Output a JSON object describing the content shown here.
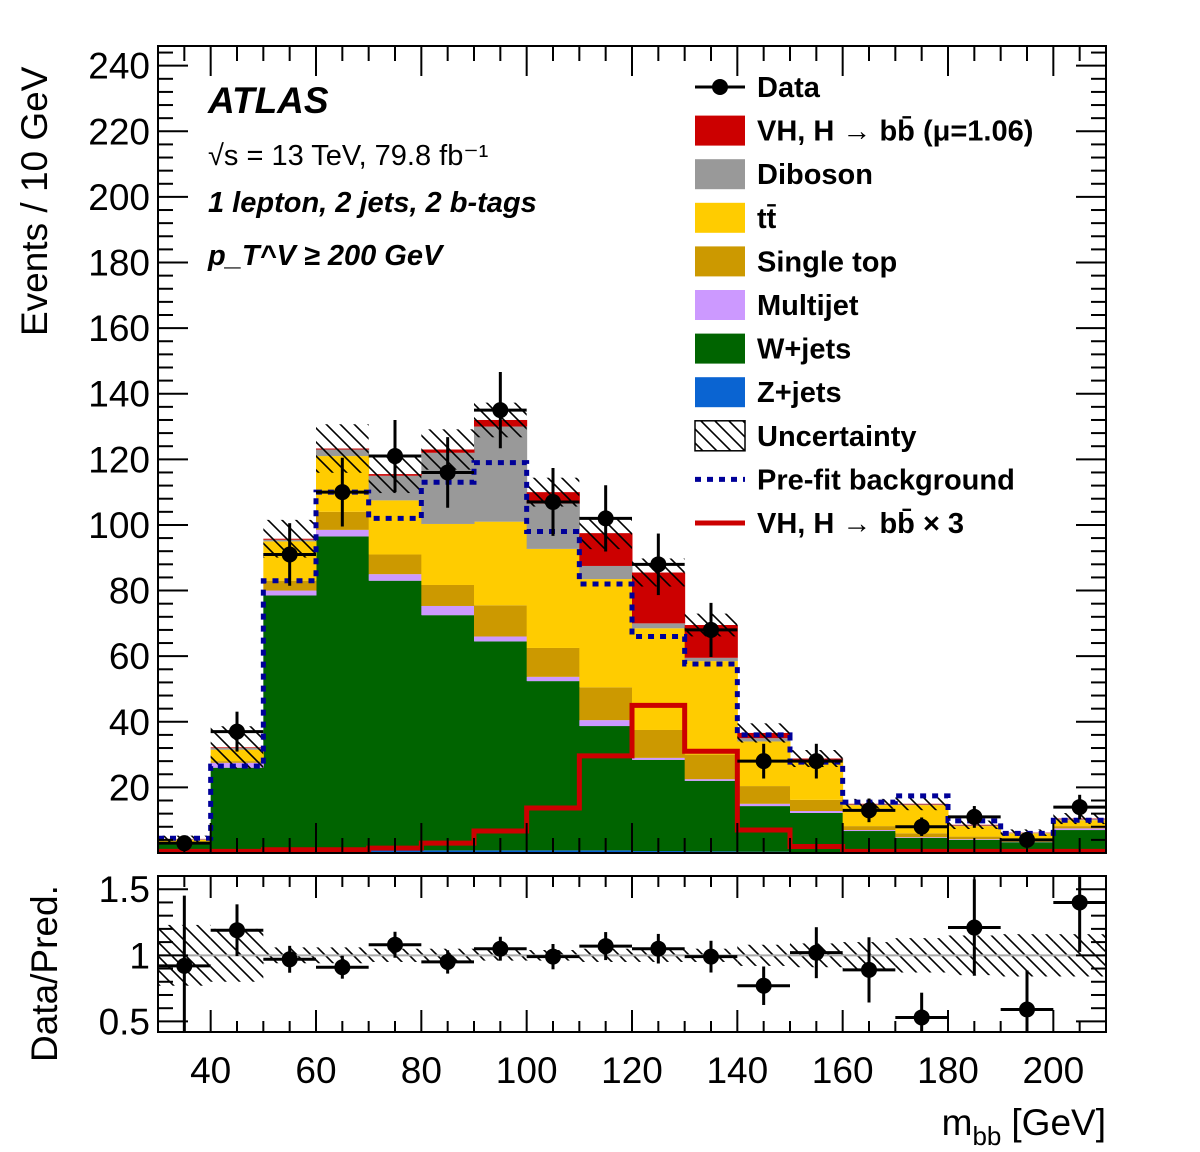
{
  "chart_data": {
    "type": "bar",
    "subtype": "stacked-histogram-with-ratio",
    "title": "",
    "experiment": "ATLAS",
    "annotations": [
      "√s = 13 TeV, 79.8 fb⁻¹",
      "1 lepton, 2 jets, 2 b-tags",
      "p_T^V ≥ 200 GeV"
    ],
    "annotation_parts": {
      "sqrt_s": "√s = 13 TeV, 79.8 fb",
      "lumi_exp": "-1",
      "selection": "1 lepton, 2 jets, 2 b-tags",
      "pt_p": "p",
      "pt_sup": "V",
      "pt_sub": "T",
      "pt_rest": "≥ 200 GeV"
    },
    "xlabel": "m_bb [GeV]",
    "xlabel_parts": {
      "m": "m",
      "sub": "bb",
      "unit": "[GeV]"
    },
    "ylabel": "Events / 10 GeV",
    "ratio_ylabel": "Data/Pred.",
    "xlim": [
      30,
      210
    ],
    "ylim": [
      0,
      246
    ],
    "ratio_ylim": [
      0.42,
      1.6
    ],
    "x_ticks": [
      40,
      60,
      80,
      100,
      120,
      140,
      160,
      180,
      200
    ],
    "y_ticks": [
      20,
      40,
      60,
      80,
      100,
      120,
      140,
      160,
      180,
      200,
      220,
      240
    ],
    "ratio_ticks": [
      "0.5",
      "1",
      "1.5"
    ],
    "bin_edges": [
      30,
      40,
      50,
      60,
      70,
      80,
      90,
      100,
      110,
      120,
      130,
      140,
      150,
      160,
      170,
      180,
      190,
      200,
      210
    ],
    "legend_position": "top-right",
    "series": [
      {
        "name": "Z+jets",
        "color": "#0a64d2",
        "values": [
          0.3,
          0.5,
          0.8,
          0.8,
          0.8,
          0.8,
          0.8,
          0.8,
          0.8,
          0.6,
          0.5,
          0.4,
          0.3,
          0.3,
          0.2,
          0.2,
          0.1,
          0.3
        ]
      },
      {
        "name": "W+jets",
        "color": "#006400",
        "values": [
          2.7,
          25.5,
          77.7,
          95.7,
          82.2,
          71.7,
          63.7,
          51.6,
          37.9,
          27.8,
          21.5,
          13.9,
          11.9,
          6.4,
          4.4,
          3.8,
          3.2,
          6.7
        ]
      },
      {
        "name": "Multijet",
        "color": "#cc99ff",
        "values": [
          0.1,
          1.5,
          1.5,
          2,
          2,
          2.8,
          1.5,
          1.3,
          1.8,
          0.6,
          0.5,
          0.7,
          0.6,
          0.3,
          0.2,
          0.2,
          0.1,
          0.5
        ]
      },
      {
        "name": "Single top",
        "color": "#cc9900",
        "values": [
          0.3,
          0.5,
          3,
          5.5,
          6,
          6.4,
          9.5,
          8.8,
          10,
          8.5,
          7.5,
          5.4,
          3.4,
          1.2,
          1.2,
          0.8,
          0.4,
          0.7
        ]
      },
      {
        "name": "tt̄",
        "color": "#ffcc00",
        "values": [
          0.6,
          3.5,
          12,
          17,
          16.5,
          18.6,
          25.5,
          30.2,
          33,
          31,
          28.5,
          13.6,
          11.8,
          6.4,
          8.6,
          3.2,
          2.2,
          1.8
        ]
      },
      {
        "name": "Diboson",
        "color": "#999999",
        "values": [
          0.2,
          0.5,
          0.5,
          2,
          7.5,
          21.7,
          29,
          13.8,
          4,
          1.5,
          1,
          1,
          0.5,
          0.2,
          0.2,
          0.2,
          0.1,
          0.3
        ]
      },
      {
        "name": "VH, H → bb̄ (μ=1.06)",
        "color": "#cc0000",
        "values": [
          0.1,
          0.2,
          0.3,
          0.3,
          0.5,
          1,
          2,
          3.5,
          10,
          15.5,
          10,
          1.6,
          0.3,
          0.2,
          0.2,
          0.2,
          0.1,
          0.2
        ]
      }
    ],
    "data": {
      "name": "Data",
      "values": [
        3,
        37,
        91,
        110,
        121,
        116,
        135,
        107,
        102,
        88,
        68,
        28,
        28,
        13,
        8,
        11,
        4,
        14
      ]
    },
    "prefit_background": {
      "name": "Pre-fit background",
      "color": "#000099",
      "values": [
        4.5,
        26.5,
        83,
        110,
        102,
        113,
        119,
        98,
        82,
        66,
        57.6,
        36,
        27.7,
        15.5,
        17.4,
        9.8,
        6,
        10
      ]
    },
    "signal_x3": {
      "name": "VH, H → bb̄ × 3",
      "color": "#cc0000",
      "values": [
        0.5,
        0.5,
        1,
        1,
        1.5,
        3,
        6.7,
        13.7,
        29.6,
        45,
        31,
        7,
        2,
        0.5,
        0.5,
        0.5,
        0.5,
        0.5
      ]
    },
    "uncertainty": {
      "name": "Uncertainty",
      "relative": [
        0.23,
        0.2,
        0.06,
        0.06,
        0.05,
        0.05,
        0.04,
        0.04,
        0.05,
        0.05,
        0.05,
        0.08,
        0.09,
        0.1,
        0.13,
        0.15,
        0.16,
        0.16
      ]
    },
    "ratio": {
      "values": [
        0.92,
        1.19,
        0.97,
        0.91,
        1.08,
        0.95,
        1.05,
        0.99,
        1.07,
        1.05,
        0.99,
        0.77,
        1.02,
        0.89,
        0.53,
        1.21,
        0.59,
        1.4
      ]
    },
    "legend": [
      {
        "label": "Data",
        "kind": "data"
      },
      {
        "label": "VH, H → bb̄ (μ=1.06)",
        "kind": "fill",
        "color": "#cc0000"
      },
      {
        "label": "Diboson",
        "kind": "fill",
        "color": "#999999"
      },
      {
        "label": "tt̄",
        "kind": "fill",
        "color": "#ffcc00"
      },
      {
        "label": "Single top",
        "kind": "fill",
        "color": "#cc9900"
      },
      {
        "label": "Multijet",
        "kind": "fill",
        "color": "#cc99ff"
      },
      {
        "label": "W+jets",
        "kind": "fill",
        "color": "#006400"
      },
      {
        "label": "Z+jets",
        "kind": "fill",
        "color": "#0a64d2"
      },
      {
        "label": "Uncertainty",
        "kind": "hatch"
      },
      {
        "label": "Pre-fit background",
        "kind": "dash",
        "color": "#000099"
      },
      {
        "label": "VH, H → bb̄ × 3",
        "kind": "line",
        "color": "#cc0000"
      }
    ]
  }
}
